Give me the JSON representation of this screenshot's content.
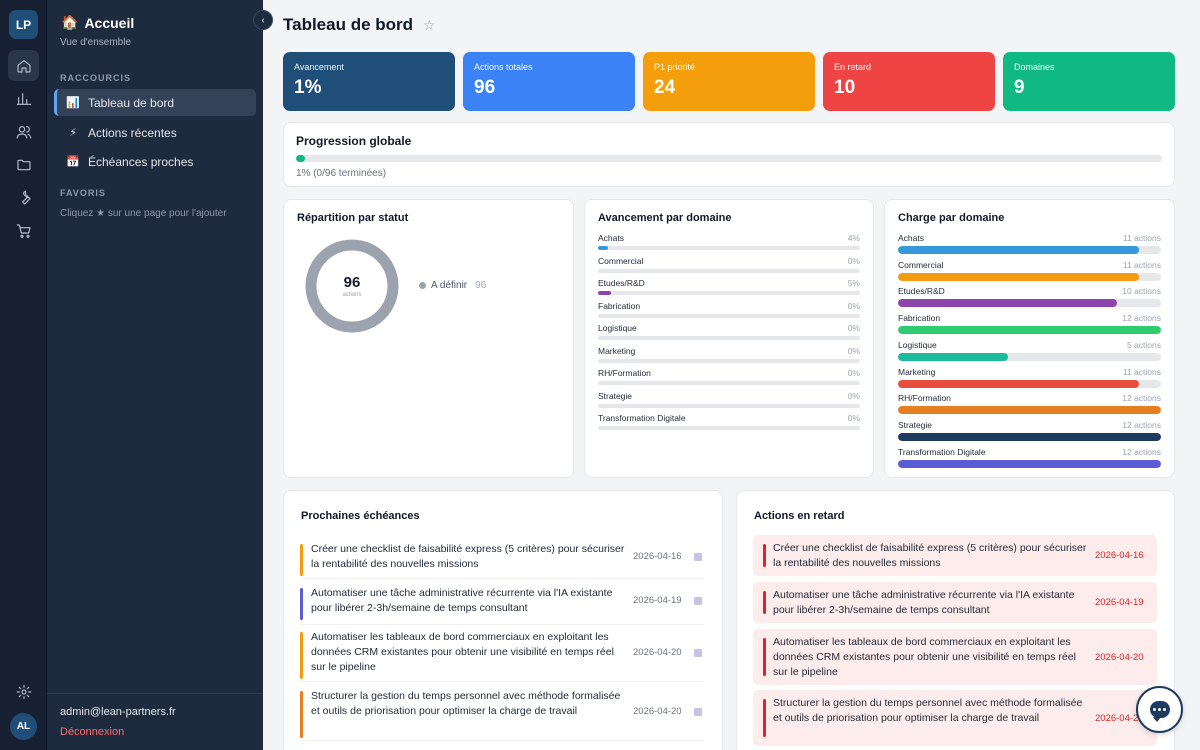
{
  "rail": {
    "logo": "LP",
    "avatar": "AL",
    "icons": [
      "home-icon",
      "chart-icon",
      "users-icon",
      "folder-icon",
      "wrench-icon",
      "cart-icon",
      "settings-icon"
    ]
  },
  "sidebar": {
    "title": "Accueil",
    "title_icon": "🏠",
    "subtitle": "Vue d'ensemble",
    "shortcuts_label": "RACCOURCIS",
    "shortcuts": [
      {
        "label": "Tableau de bord",
        "icon": "📊"
      },
      {
        "label": "Actions récentes",
        "icon": "⚡"
      },
      {
        "label": "Échéances proches",
        "icon": "📅"
      }
    ],
    "favorites_label": "FAVORIS",
    "favorites_hint": "Cliquez ★ sur une page pour l'ajouter",
    "user_email": "admin@lean-partners.fr",
    "logout_label": "Déconnexion"
  },
  "header": {
    "title": "Tableau de bord",
    "star": "☆"
  },
  "kpis": [
    {
      "label": "Avancement",
      "value": "1%",
      "color": "#1f4e79"
    },
    {
      "label": "Actions totales",
      "value": "96",
      "color": "#3b82f6"
    },
    {
      "label": "P1 priorité",
      "value": "24",
      "color": "#f59e0b"
    },
    {
      "label": "En retard",
      "value": "10",
      "color": "#ef4444"
    },
    {
      "label": "Domaines",
      "value": "9",
      "color": "#10b981"
    }
  ],
  "progress": {
    "title": "Progression globale",
    "percent": 1,
    "text": "1% (0/96 terminées)"
  },
  "status": {
    "title": "Répartition par statut",
    "total": "96",
    "unit": "actions",
    "legend": [
      {
        "label": "A définir",
        "count": "96",
        "color": "#9ca3af"
      }
    ]
  },
  "domain_progress": {
    "title": "Avancement par domaine",
    "rows": [
      {
        "name": "Achats",
        "pct": 4,
        "label": "4%",
        "color": "#3498db"
      },
      {
        "name": "Commercial",
        "pct": 0,
        "label": "0%",
        "color": "#f39c12"
      },
      {
        "name": "Etudes/R&D",
        "pct": 5,
        "label": "5%",
        "color": "#8e44ad"
      },
      {
        "name": "Fabrication",
        "pct": 0,
        "label": "0%",
        "color": "#2ecc71"
      },
      {
        "name": "Logistique",
        "pct": 0,
        "label": "0%",
        "color": "#1abc9c"
      },
      {
        "name": "Marketing",
        "pct": 0,
        "label": "0%",
        "color": "#e74c3c"
      },
      {
        "name": "RH/Formation",
        "pct": 0,
        "label": "0%",
        "color": "#e67e22"
      },
      {
        "name": "Strategie",
        "pct": 0,
        "label": "0%",
        "color": "#1f3a5f"
      },
      {
        "name": "Transformation Digitale",
        "pct": 0,
        "label": "0%",
        "color": "#5b5bd6"
      }
    ]
  },
  "domain_load": {
    "title": "Charge par domaine",
    "max": 12,
    "rows": [
      {
        "name": "Achats",
        "count": 11,
        "label": "11 actions",
        "color": "#3498db"
      },
      {
        "name": "Commercial",
        "count": 11,
        "label": "11 actions",
        "color": "#f39c12"
      },
      {
        "name": "Etudes/R&D",
        "count": 10,
        "label": "10 actions",
        "color": "#8e44ad"
      },
      {
        "name": "Fabrication",
        "count": 12,
        "label": "12 actions",
        "color": "#2ecc71"
      },
      {
        "name": "Logistique",
        "count": 5,
        "label": "5 actions",
        "color": "#1abc9c"
      },
      {
        "name": "Marketing",
        "count": 11,
        "label": "11 actions",
        "color": "#e74c3c"
      },
      {
        "name": "RH/Formation",
        "count": 12,
        "label": "12 actions",
        "color": "#e67e22"
      },
      {
        "name": "Strategie",
        "count": 12,
        "label": "12 actions",
        "color": "#1f3a5f"
      },
      {
        "name": "Transformation Digitale",
        "count": 12,
        "label": "12 actions",
        "color": "#5b5bd6"
      }
    ]
  },
  "deadlines": {
    "title": "Prochaines échéances",
    "items": [
      {
        "text": "Créer une checklist de faisabilité express (5 critères) pour sécuriser la rentabilité des nouvelles missions",
        "date": "2026-04-16",
        "color": "#f39c12"
      },
      {
        "text": "Automatiser une tâche administrative récurrente via l'IA existante pour libérer 2-3h/semaine de temps consultant",
        "date": "2026-04-19",
        "color": "#5b5bd6"
      },
      {
        "text": "Automatiser les tableaux de bord commerciaux en exploitant les données CRM existantes pour obtenir une visibilité en temps réel sur le pipeline",
        "date": "2026-04-20",
        "color": "#f39c12"
      },
      {
        "text": "Structurer la gestion du temps personnel avec méthode formalisée et outils de priorisation pour optimiser la charge de travail",
        "date": "2026-04-20",
        "color": "#e67e22"
      }
    ]
  },
  "overdue": {
    "title": "Actions en retard",
    "items": [
      {
        "text": "Créer une checklist de faisabilité express (5 critères) pour sécuriser la rentabilité des nouvelles missions",
        "date": "2026-04-16"
      },
      {
        "text": "Automatiser une tâche administrative récurrente via l'IA existante pour libérer 2-3h/semaine de temps consultant",
        "date": "2026-04-19"
      },
      {
        "text": "Automatiser les tableaux de bord commerciaux en exploitant les données CRM existantes pour obtenir une visibilité en temps réel sur le pipeline",
        "date": "2026-04-20"
      },
      {
        "text": "Structurer la gestion du temps personnel avec méthode formalisée et outils de priorisation pour optimiser la charge de travail",
        "date": "2026-04-20"
      }
    ]
  }
}
